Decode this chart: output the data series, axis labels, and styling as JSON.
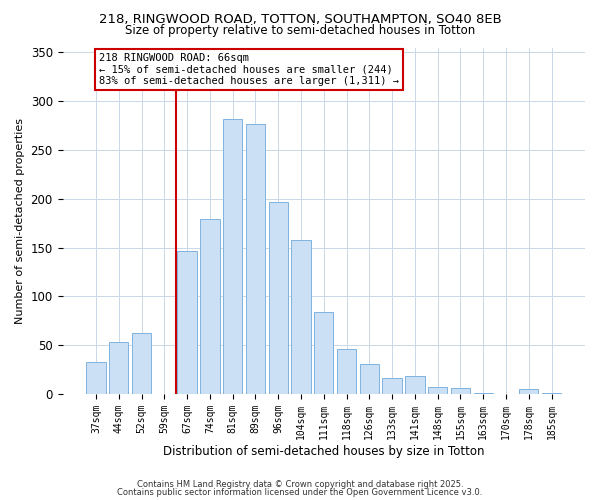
{
  "title_line1": "218, RINGWOOD ROAD, TOTTON, SOUTHAMPTON, SO40 8EB",
  "title_line2": "Size of property relative to semi-detached houses in Totton",
  "xlabel": "Distribution of semi-detached houses by size in Totton",
  "ylabel": "Number of semi-detached properties",
  "bar_labels": [
    "37sqm",
    "44sqm",
    "52sqm",
    "59sqm",
    "67sqm",
    "74sqm",
    "81sqm",
    "89sqm",
    "96sqm",
    "104sqm",
    "111sqm",
    "118sqm",
    "126sqm",
    "133sqm",
    "141sqm",
    "148sqm",
    "155sqm",
    "163sqm",
    "170sqm",
    "178sqm",
    "185sqm"
  ],
  "bar_values": [
    33,
    53,
    62,
    0,
    146,
    179,
    282,
    277,
    197,
    158,
    84,
    46,
    31,
    16,
    18,
    7,
    6,
    1,
    0,
    5,
    1
  ],
  "bar_color": "#cce0f5",
  "bar_edgecolor": "#7fb3e0",
  "vline_x_index": 4,
  "vline_color": "#cc0000",
  "annotation_title": "218 RINGWOOD ROAD: 66sqm",
  "annotation_line2": "← 15% of semi-detached houses are smaller (244)",
  "annotation_line3": "83% of semi-detached houses are larger (1,311) →",
  "annotation_box_color": "#cc0000",
  "ylim": [
    0,
    355
  ],
  "yticks": [
    0,
    50,
    100,
    150,
    200,
    250,
    300,
    350
  ],
  "footer_line1": "Contains HM Land Registry data © Crown copyright and database right 2025.",
  "footer_line2": "Contains public sector information licensed under the Open Government Licence v3.0.",
  "bg_color": "#ffffff",
  "grid_color": "#c8d8e8"
}
